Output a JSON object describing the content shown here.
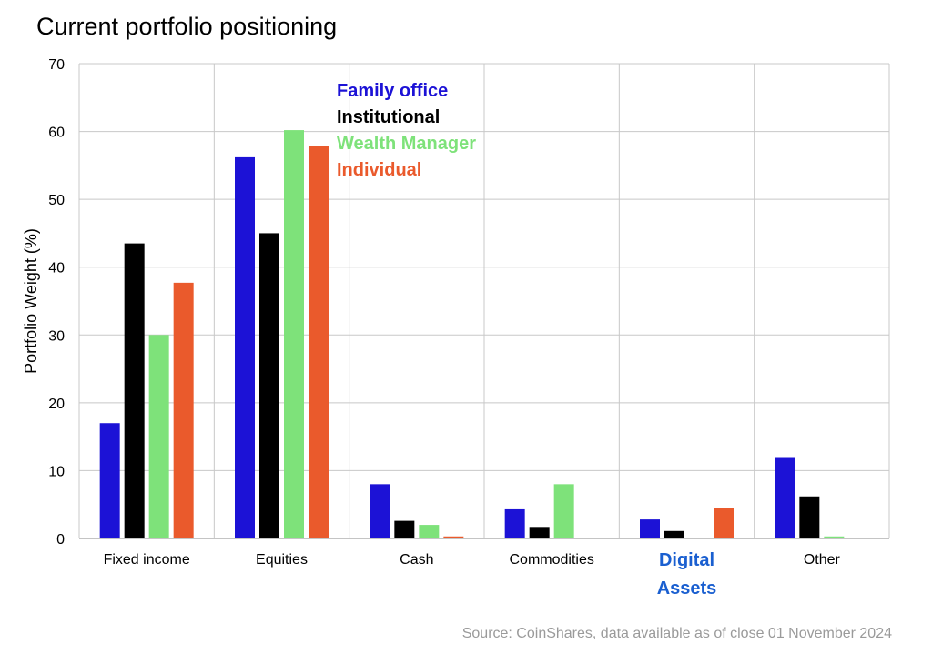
{
  "title": "Current portfolio positioning",
  "source": "Source: CoinShares, data available as of close 01 November 2024",
  "chart_data": {
    "type": "bar",
    "ylabel": "Portfolio Weight (%)",
    "xlabel": "",
    "ylim": [
      0,
      70
    ],
    "yticks": [
      0,
      10,
      20,
      30,
      40,
      50,
      60,
      70
    ],
    "grid": true,
    "legend_position": "top-center",
    "categories": [
      "Fixed income",
      "Equities",
      "Cash",
      "Commodities",
      "Digital Assets",
      "Other"
    ],
    "highlighted_category": {
      "name": "Digital Assets",
      "lines": [
        "Digital",
        "Assets"
      ],
      "color": "#1a5fd0"
    },
    "series": [
      {
        "name": "Family office",
        "color": "#1c12d6",
        "values": [
          17,
          56.2,
          8,
          4.3,
          2.8,
          12
        ]
      },
      {
        "name": "Institutional",
        "color": "#000000",
        "values": [
          43.5,
          45,
          2.6,
          1.7,
          1.1,
          6.2
        ]
      },
      {
        "name": "Wealth Manager",
        "color": "#7ee27a",
        "values": [
          30,
          60.2,
          2,
          8,
          0.1,
          0.3
        ]
      },
      {
        "name": "Individual",
        "color": "#ea5a2c",
        "values": [
          37.7,
          57.8,
          0.3,
          0,
          4.5,
          0.1
        ]
      }
    ]
  }
}
